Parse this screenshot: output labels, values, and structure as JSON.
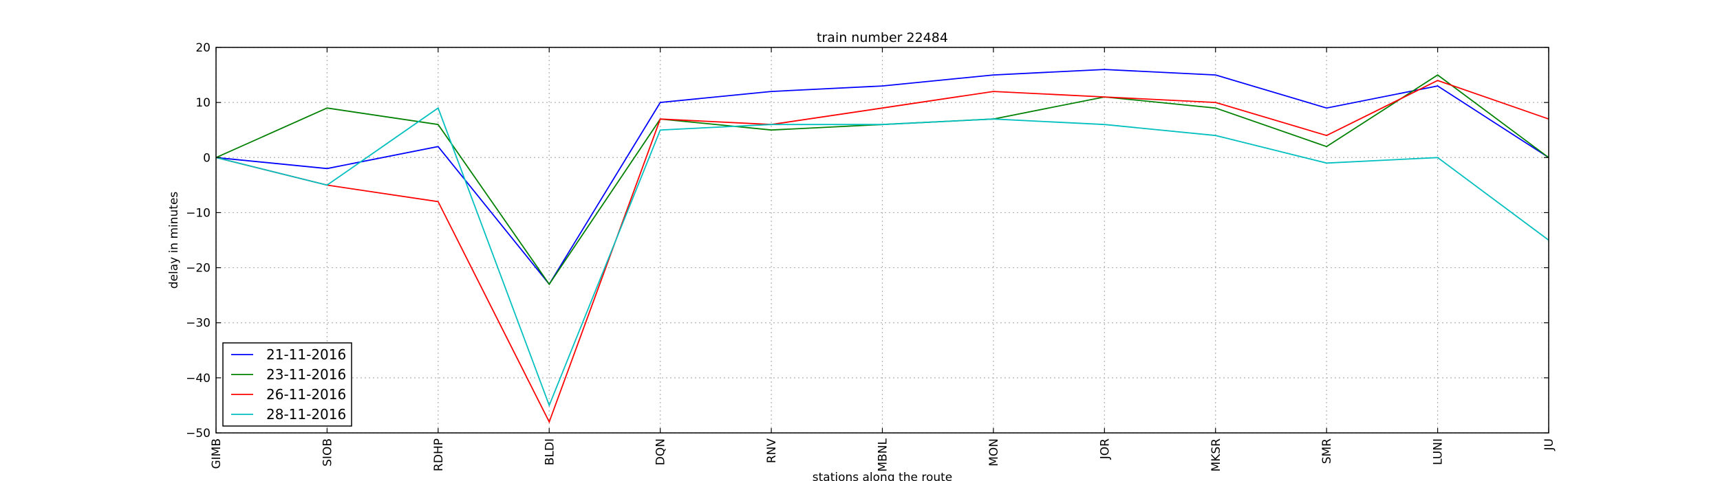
{
  "chart_data": {
    "type": "line",
    "title": "train number 22484",
    "xlabel": "stations along the route",
    "ylabel": "delay in minutes",
    "categories": [
      "GIMB",
      "SIOB",
      "RDHP",
      "BLDI",
      "DQN",
      "RNV",
      "MBNL",
      "MON",
      "JOR",
      "MKSR",
      "SMR",
      "LUNI",
      "JU"
    ],
    "ylim": [
      -50,
      20
    ],
    "yticks": [
      -50,
      -40,
      -30,
      -20,
      -10,
      0,
      10,
      20
    ],
    "grid": true,
    "legend_position": "lower-left",
    "series": [
      {
        "name": "21-11-2016",
        "color": "#0000ff",
        "values": [
          0,
          -2,
          2,
          -23,
          10,
          12,
          13,
          15,
          16,
          15,
          9,
          13,
          0
        ]
      },
      {
        "name": "23-11-2016",
        "color": "#008000",
        "values": [
          0,
          9,
          6,
          -23,
          7,
          5,
          6,
          7,
          11,
          9,
          2,
          15,
          0
        ]
      },
      {
        "name": "26-11-2016",
        "color": "#ff0000",
        "values": [
          0,
          -5,
          -8,
          -48,
          7,
          6,
          9,
          12,
          11,
          10,
          4,
          14,
          7
        ]
      },
      {
        "name": "28-11-2016",
        "color": "#00bfbf",
        "values": [
          0,
          -5,
          9,
          -45,
          5,
          6,
          6,
          7,
          6,
          4,
          -1,
          0,
          -15
        ]
      }
    ]
  }
}
